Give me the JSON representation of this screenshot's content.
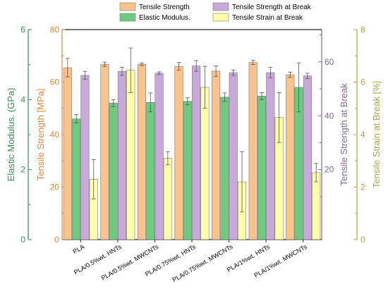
{
  "chart_data": {
    "type": "bar",
    "categories": [
      "PLA",
      "PLA/0.5%wt. HNTs",
      "PLA/0.5%wt. MWCNTs",
      "PLA/0.75%wt. HNTs",
      "PLA/0.75%wt. MWCNTs",
      "PLA/1%wt. HNTs",
      "PLA/1%wt. MWCNTs"
    ],
    "series": [
      {
        "name": "Tensile Strength",
        "axis": "ts",
        "color": "#F9C38B",
        "values": [
          65.5,
          66.8,
          66.8,
          66.0,
          64.2,
          67.5,
          62.8
        ],
        "errors": [
          3.5,
          0.8,
          0.5,
          1.5,
          2.0,
          0.8,
          1.0
        ]
      },
      {
        "name": "Elastic Modulus.",
        "axis": "em",
        "color": "#6CCB7E",
        "values": [
          3.45,
          3.9,
          3.92,
          3.95,
          4.07,
          4.1,
          4.35
        ],
        "errors": [
          0.12,
          0.1,
          0.27,
          0.1,
          0.12,
          0.1,
          0.7
        ]
      },
      {
        "name": "Tensile Strength at Break",
        "axis": "tsb",
        "color": "#C9A8DB",
        "values": [
          55.0,
          56.5,
          55.8,
          58.5,
          56.0,
          56.0,
          54.8
        ],
        "errors": [
          1.5,
          1.5,
          0.5,
          2.0,
          1.0,
          2.0,
          1.0
        ]
      },
      {
        "name": "Tensile Strain at Break",
        "axis": "tsab",
        "color": "#FFFFAA",
        "values": [
          2.3,
          6.45,
          3.1,
          5.8,
          2.2,
          4.65,
          2.55
        ],
        "errors": [
          0.75,
          0.85,
          0.25,
          0.8,
          1.15,
          0.95,
          0.35
        ]
      }
    ],
    "axes": {
      "em": {
        "label": "Elastic Modulus. (GPa)",
        "range": [
          0,
          6
        ],
        "ticks": [
          "0",
          "2",
          "4",
          "6"
        ],
        "color": "#3A8C55"
      },
      "ts": {
        "label": "Tensile Strength [MPa]",
        "range": [
          0,
          80
        ],
        "ticks": [
          "0",
          "20",
          "40",
          "60",
          "80"
        ],
        "color": "#E08A3C"
      },
      "tsb": {
        "label": "Tensile Strength at Break",
        "range": [
          -6,
          72
        ],
        "ticks": [
          "20",
          "40",
          "60"
        ],
        "color": "#7D6C99"
      },
      "tsab": {
        "label": "Tensile Strain at Break [%]",
        "range": [
          0,
          8
        ],
        "ticks": [
          "0",
          "2",
          "4",
          "6",
          "8"
        ],
        "color": "#A8A843"
      }
    },
    "legend_placement": "top-center",
    "grid": false
  }
}
